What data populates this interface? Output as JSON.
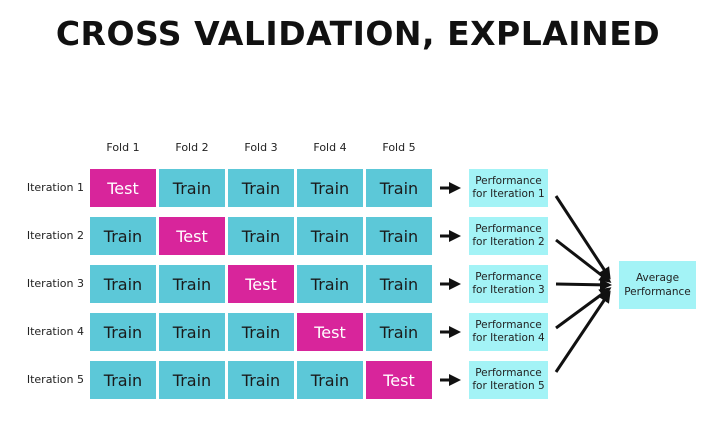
{
  "title": "CROSS VALIDATION, EXPLAINED",
  "folds": [
    "Fold 1",
    "Fold 2",
    "Fold 3",
    "Fold 4",
    "Fold 5"
  ],
  "iterations": [
    {
      "label": "Iteration 1",
      "cells": [
        "Test",
        "Train",
        "Train",
        "Train",
        "Train"
      ],
      "performance": "Performance for Iteration 1"
    },
    {
      "label": "Iteration 2",
      "cells": [
        "Train",
        "Test",
        "Train",
        "Train",
        "Train"
      ],
      "performance": "Performance for Iteration 2"
    },
    {
      "label": "Iteration 3",
      "cells": [
        "Train",
        "Train",
        "Test",
        "Train",
        "Train"
      ],
      "performance": "Performance for Iteration 3"
    },
    {
      "label": "Iteration 4",
      "cells": [
        "Train",
        "Train",
        "Train",
        "Test",
        "Train"
      ],
      "performance": "Performance for Iteration 4"
    },
    {
      "label": "Iteration 5",
      "cells": [
        "Train",
        "Train",
        "Train",
        "Train",
        "Test"
      ],
      "performance": "Performance for Iteration 5"
    }
  ],
  "average": "Average Performance",
  "colors": {
    "train": "#5cc8d8",
    "test": "#d8259b",
    "performance": "#a3f3f6"
  }
}
